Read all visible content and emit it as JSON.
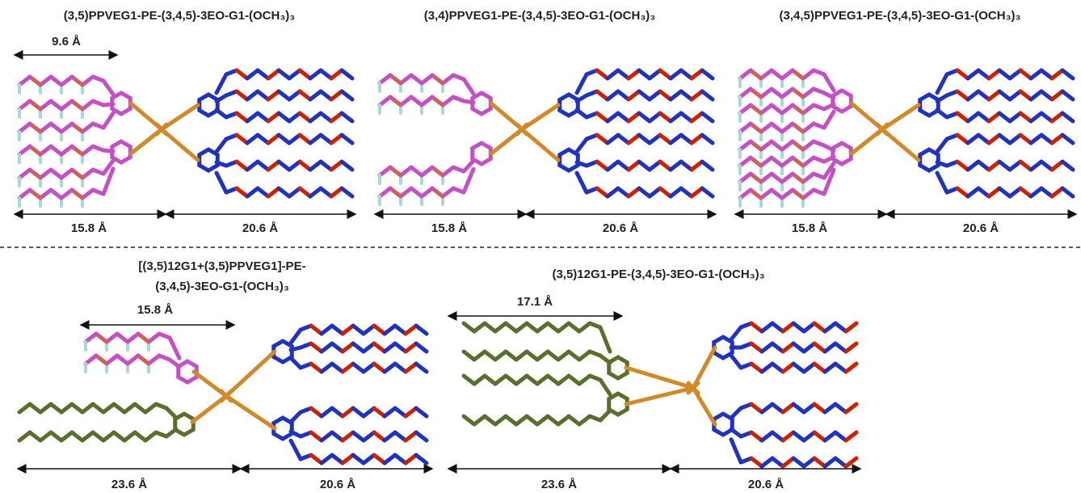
{
  "panels": [
    {
      "title": "(3,5)PPVEG1-PE-(3,4,5)-3EO-G1-(OCH₃)₃",
      "top_measure": "9.6 Å",
      "left_measure": "15.8 Å",
      "right_measure": "20.6 Å"
    },
    {
      "title": "(3,4)PPVEG1-PE-(3,4,5)-3EO-G1-(OCH₃)₃",
      "left_measure": "15.8 Å",
      "right_measure": "20.6 Å"
    },
    {
      "title": "(3,4,5)PPVEG1-PE-(3,4,5)-3EO-G1-(OCH₃)₃",
      "left_measure": "15.8 Å",
      "right_measure": "20.6 Å"
    },
    {
      "title_lines": [
        "[(3,5)12G1+(3,5)PPVEG1]-PE-",
        "(3,4,5)-3EO-G1-(OCH₃)₃"
      ],
      "top_measure": "15.8 Å",
      "left_measure": "23.6 Å",
      "right_measure": "20.6 Å"
    },
    {
      "title": "(3,5)12G1-PE-(3,4,5)-3EO-G1-(OCH₃)₃",
      "top_measure": "17.1 Å",
      "left_measure": "23.6 Å",
      "right_measure": "20.6 Å"
    }
  ]
}
